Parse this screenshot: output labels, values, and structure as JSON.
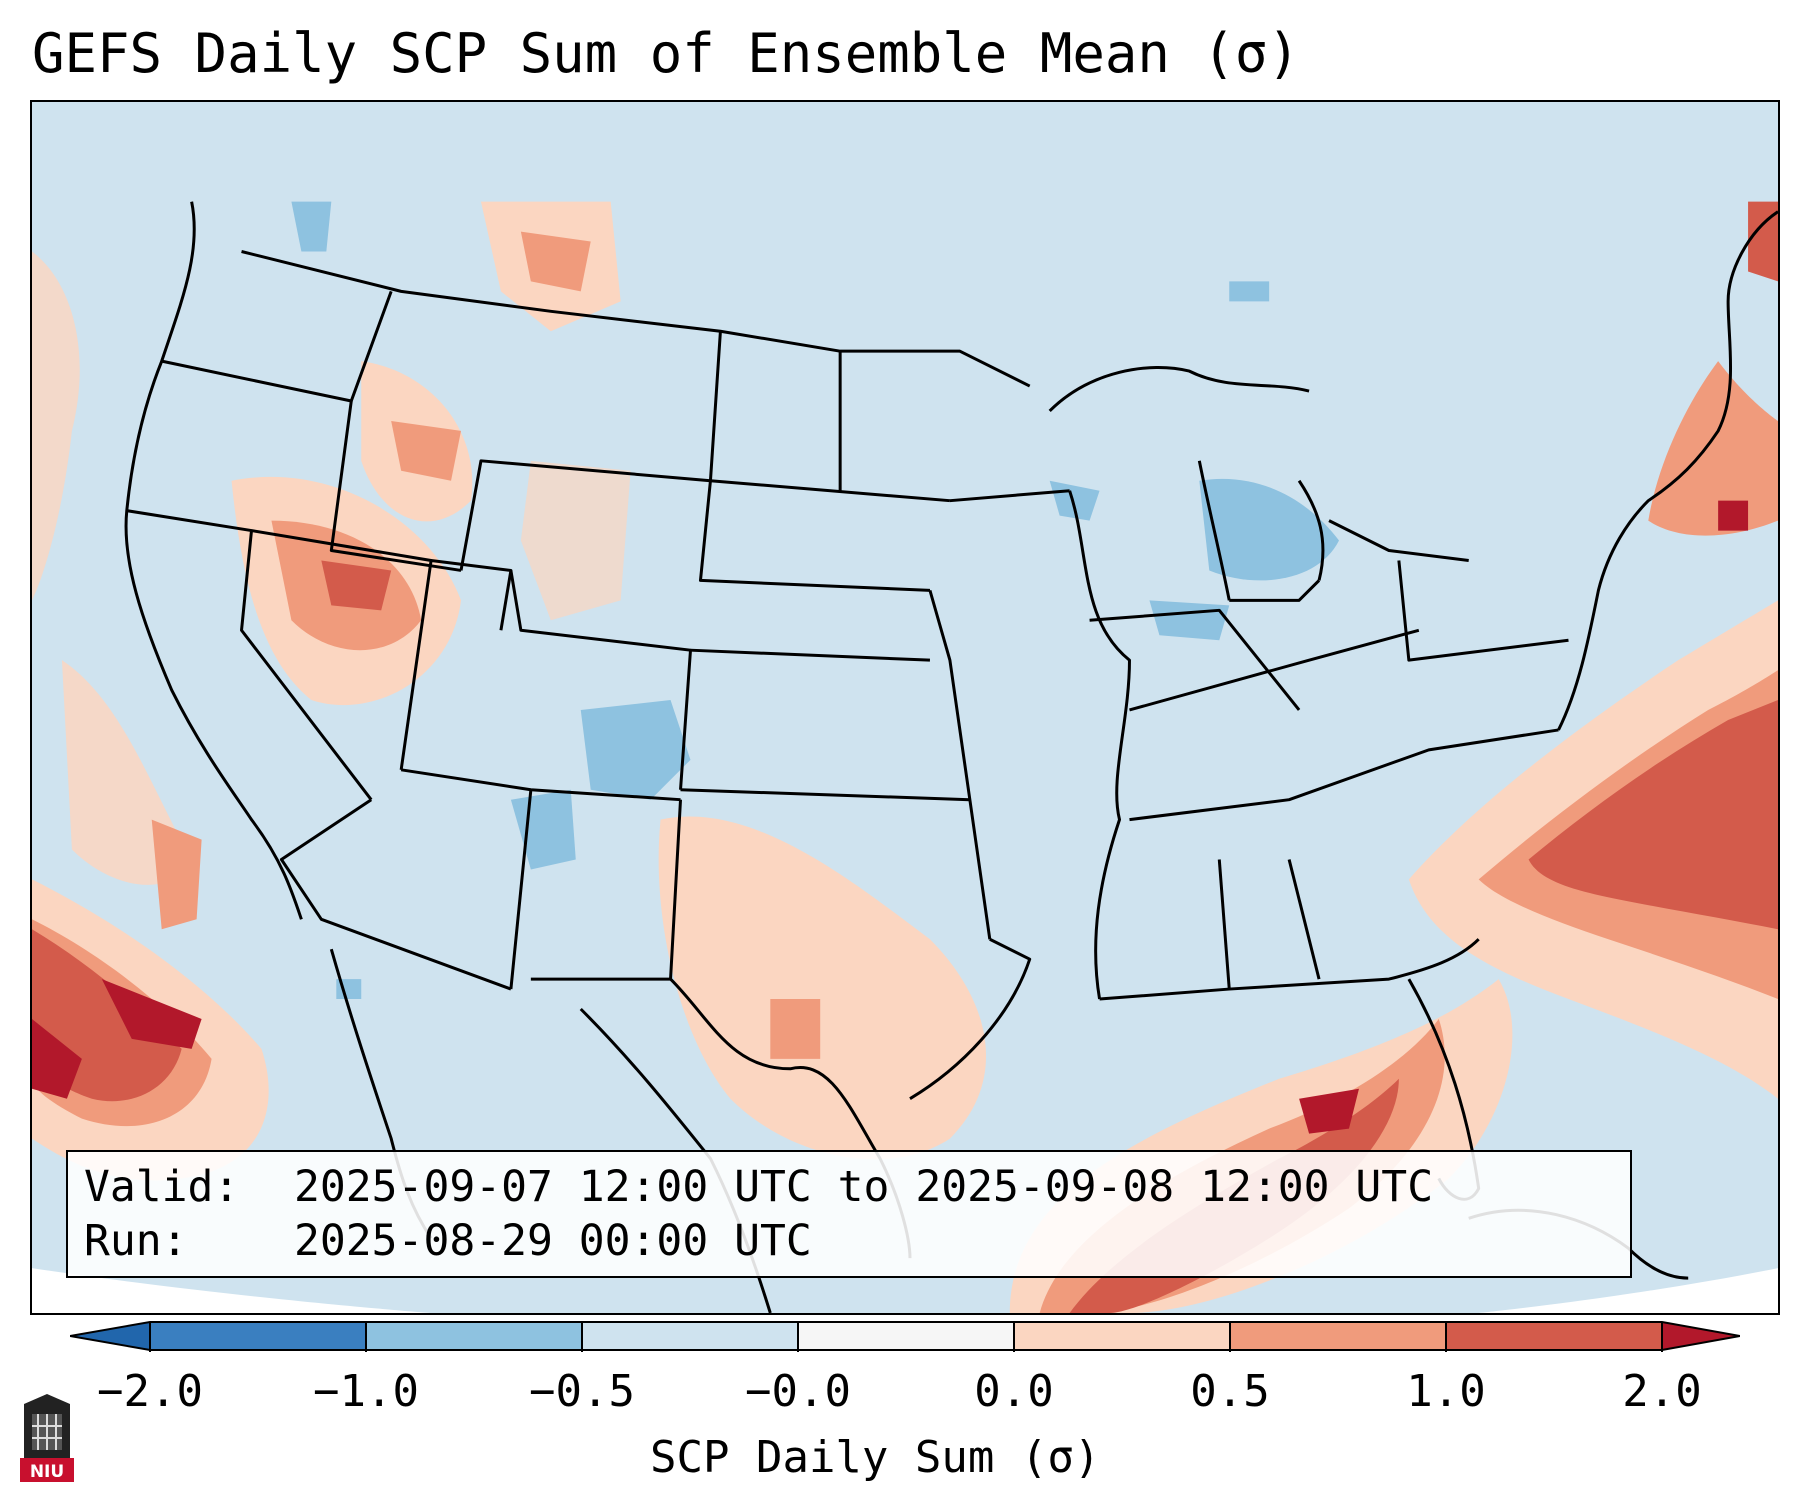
{
  "title": "GEFS Daily SCP Sum of Ensemble Mean (σ)",
  "valid_label": "Valid:",
  "valid_value": "2025-09-07 12:00 UTC to 2025-09-08 12:00 UTC",
  "run_label": "Run:",
  "run_value": "2025-08-29 00:00 UTC",
  "colorbar": {
    "label": "SCP Daily Sum (σ)",
    "ticks": [
      "−2.0",
      "−1.0",
      "−0.5",
      "−0.0",
      "0.0",
      "0.5",
      "1.0",
      "2.0"
    ],
    "colors": [
      "#3a7fc0",
      "#8ec2e0",
      "#cfe3ef",
      "#f6f6f6",
      "#fbd6c1",
      "#f09b7c",
      "#d35b4b",
      "#b2182b"
    ]
  },
  "logo_text": "NIU",
  "anomaly_regions": [
    {
      "region": "Gulf of Mexico / Southeast",
      "level": "1.0 to 2.0"
    },
    {
      "region": "Western Atlantic offshore",
      "level": "1.0 to 2.0"
    },
    {
      "region": "Eastern Pacific off Baja California",
      "level": "1.0 to 2.0"
    },
    {
      "region": "Great Basin / Nevada",
      "level": "0.5 to 1.0"
    },
    {
      "region": "Colorado / New Mexico",
      "level": "-1.0 to -0.5"
    },
    {
      "region": "Great Lakes",
      "level": "-1.0 to -0.5"
    }
  ]
}
